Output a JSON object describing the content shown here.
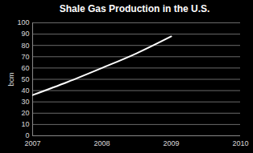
{
  "chart_data": {
    "type": "line",
    "title": "Shale Gas Production in the U.S.",
    "y_label": "bcm",
    "x": [
      2007,
      2007.5,
      2008,
      2008.5,
      2009
    ],
    "values": [
      36,
      47.5,
      60,
      73,
      88
    ],
    "color": "#ffffff",
    "xlim": [
      2007,
      2010
    ],
    "xticks": [
      2007,
      2008,
      2009,
      2010
    ],
    "ylim": [
      0,
      100
    ],
    "yticks": [
      0,
      10,
      20,
      30,
      40,
      50,
      60,
      70,
      80,
      90,
      100
    ],
    "grid": true
  }
}
